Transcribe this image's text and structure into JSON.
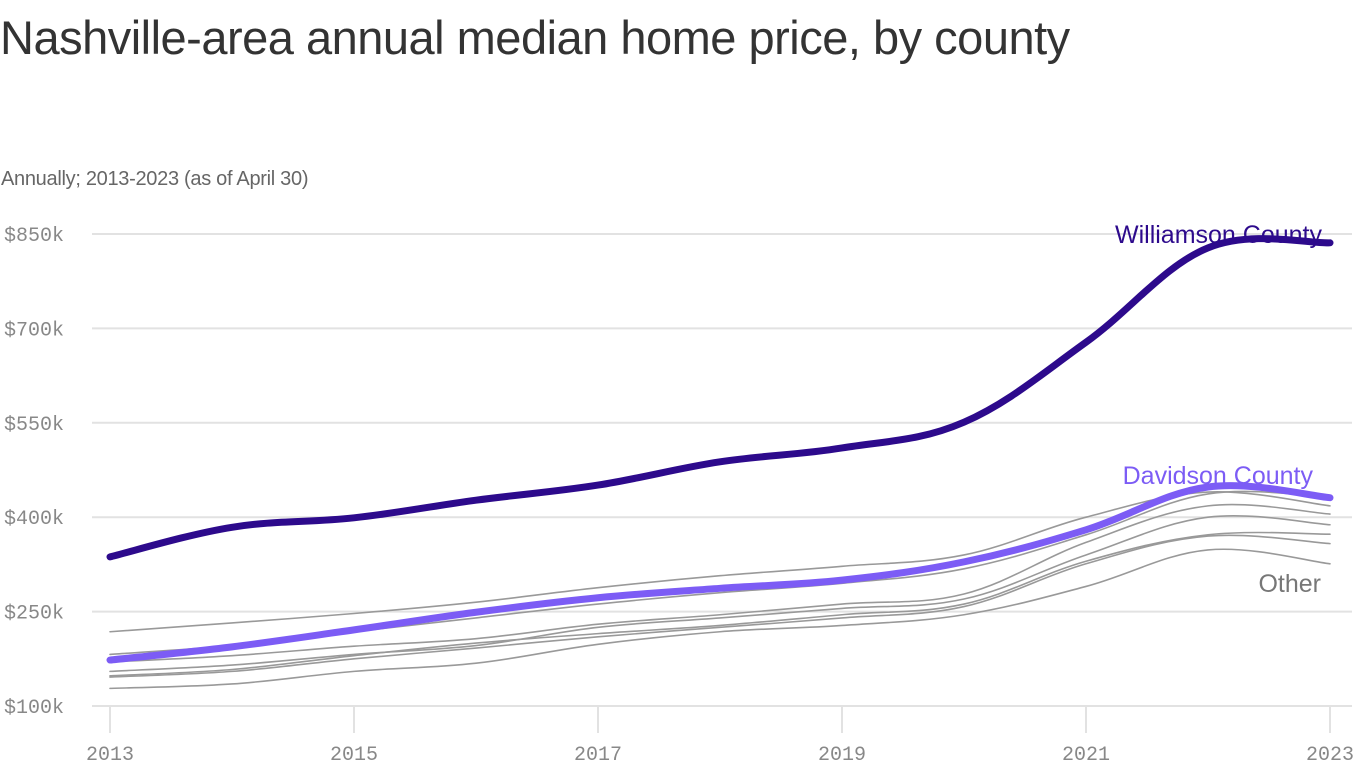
{
  "chart_data": {
    "type": "line",
    "title": "Nashville-area annual median home price, by county",
    "subtitle": "Annually; 2013-2023 (as of April 30)",
    "xlabel": "",
    "ylabel": "",
    "x": [
      2013,
      2014,
      2015,
      2016,
      2017,
      2018,
      2019,
      2020,
      2021,
      2022,
      2023
    ],
    "x_tick_labels": [
      "2013",
      "2015",
      "2017",
      "2019",
      "2021",
      "2023"
    ],
    "x_ticks": [
      2013,
      2015,
      2017,
      2019,
      2021,
      2023
    ],
    "y_ticks": [
      100,
      250,
      400,
      550,
      700,
      850
    ],
    "y_tick_labels": [
      "$100k",
      "$250k",
      "$400k",
      "$550k",
      "$700k",
      "$850k"
    ],
    "ylim": [
      100,
      850
    ],
    "xlim": [
      2013,
      2023
    ],
    "grid": "horizontal",
    "units": "thousands of dollars",
    "series": [
      {
        "name": "Other 1",
        "group": "Other",
        "color": "#999999",
        "values": [
          218,
          232,
          247,
          265,
          288,
          307,
          322,
          340,
          400,
          440,
          418
        ]
      },
      {
        "name": "Other 2",
        "group": "Other",
        "color": "#999999",
        "values": [
          182,
          196,
          218,
          240,
          262,
          280,
          295,
          318,
          372,
          437,
          432
        ]
      },
      {
        "name": "Other 3",
        "group": "Other",
        "color": "#999999",
        "values": [
          170,
          180,
          195,
          207,
          230,
          245,
          262,
          278,
          360,
          418,
          405
        ]
      },
      {
        "name": "Other 4",
        "group": "Other",
        "color": "#999999",
        "values": [
          155,
          165,
          182,
          196,
          225,
          240,
          255,
          270,
          340,
          400,
          388
        ]
      },
      {
        "name": "Other 5",
        "group": "Other",
        "color": "#999999",
        "values": [
          148,
          158,
          180,
          200,
          215,
          228,
          245,
          262,
          330,
          372,
          373
        ]
      },
      {
        "name": "Other 6",
        "group": "Other",
        "color": "#999999",
        "values": [
          146,
          155,
          175,
          192,
          210,
          225,
          240,
          258,
          326,
          370,
          358
        ]
      },
      {
        "name": "Other 7",
        "group": "Other",
        "color": "#999999",
        "values": [
          128,
          135,
          155,
          168,
          198,
          218,
          228,
          245,
          290,
          348,
          326
        ]
      },
      {
        "name": "Davidson County",
        "group": "Davidson County",
        "color": "#7c5cf5",
        "values": [
          173,
          194,
          221,
          249,
          272,
          287,
          300,
          329,
          380,
          448,
          431
        ]
      },
      {
        "name": "Williamson County",
        "group": "Williamson County",
        "color": "#2d0a8c",
        "values": [
          337,
          384,
          399,
          427,
          451,
          488,
          510,
          551,
          678,
          828,
          836
        ]
      }
    ],
    "annotations": [
      {
        "text": "Williamson County",
        "series": "Williamson County",
        "color": "#2d0a8c"
      },
      {
        "text": "Davidson County",
        "series": "Davidson County",
        "color": "#7c5cf5"
      },
      {
        "text": "Other",
        "series": "Other",
        "color": "#777777"
      }
    ],
    "legend": "none (direct labels at right)"
  }
}
